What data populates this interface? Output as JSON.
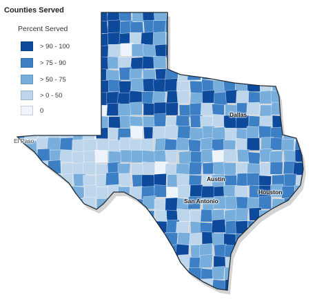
{
  "title": "Counties Served",
  "legend": {
    "heading": "Percent Served",
    "items": [
      {
        "label": "> 90 - 100",
        "color": "#0d4a9c"
      },
      {
        "label": "> 75 - 90",
        "color": "#3d7fc4"
      },
      {
        "label": "> 50 - 75",
        "color": "#78aedb"
      },
      {
        "label": "> 0 - 50",
        "color": "#bdd6eb"
      },
      {
        "label": "0",
        "color": "#eef4fb"
      }
    ]
  },
  "cities": {
    "el_paso": "El Paso",
    "dallas": "Dallas",
    "austin": "Austin",
    "san_antonio": "San Antonio",
    "houston": "Houston"
  },
  "map": {
    "shadow_color": "#c8c8c8",
    "outline_color": "#1e2a36"
  }
}
